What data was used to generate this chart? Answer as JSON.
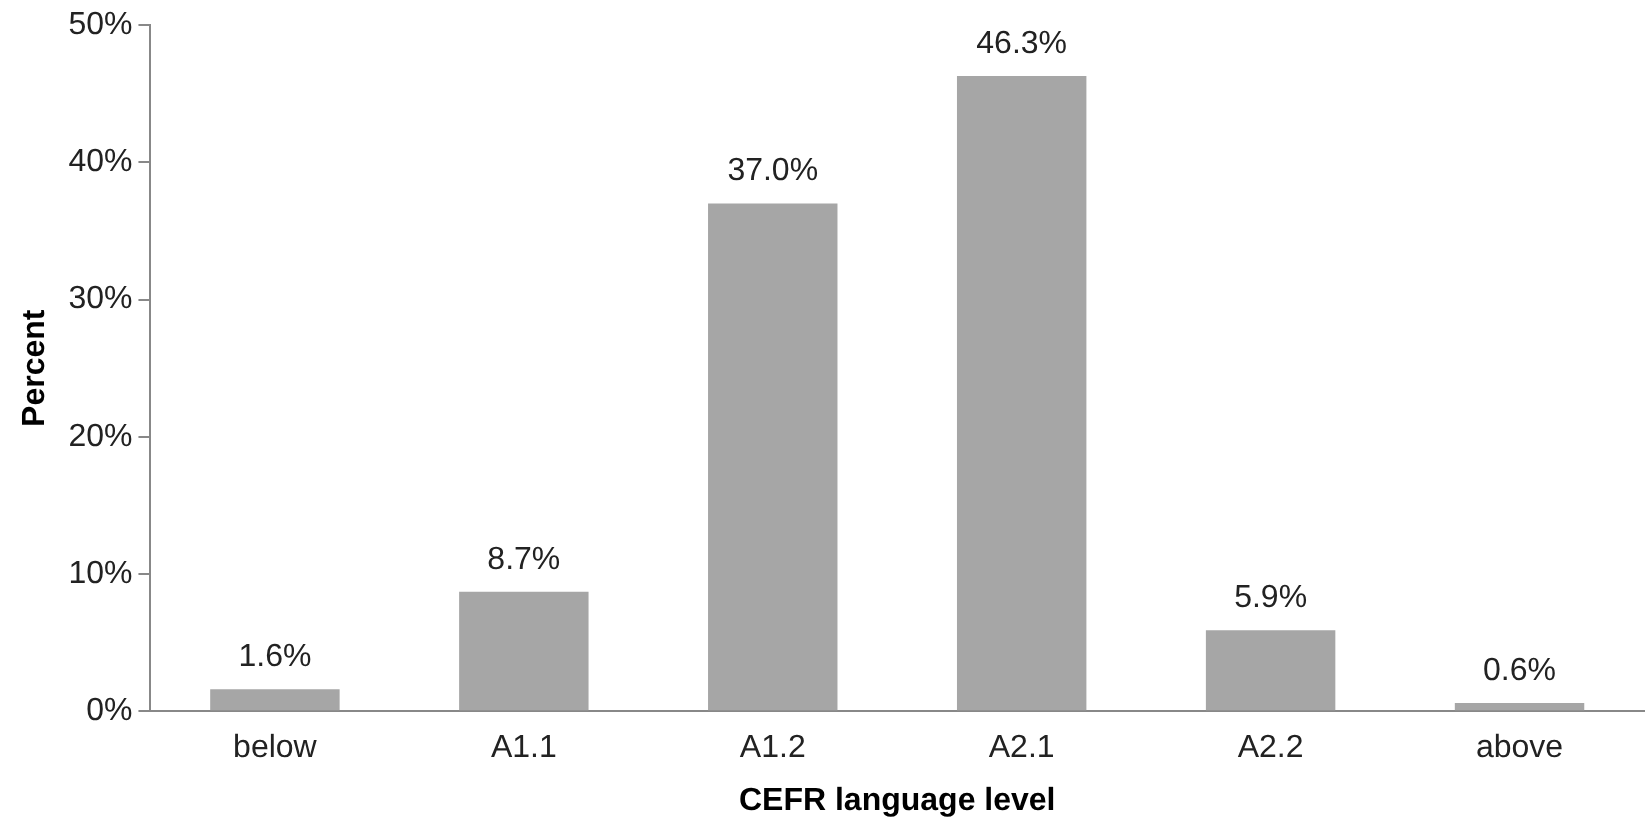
{
  "chart_data": {
    "type": "bar",
    "xlabel": "CEFR language level",
    "ylabel": "Percent",
    "categories": [
      "below",
      "A1.1",
      "A1.2",
      "A2.1",
      "A2.2",
      "above"
    ],
    "values": [
      1.6,
      8.7,
      37.0,
      46.3,
      5.9,
      0.6
    ],
    "value_labels": [
      "1.6%",
      "8.7%",
      "37.0%",
      "46.3%",
      "5.9%",
      "0.6%"
    ],
    "color": "#a6a6a6",
    "ylim": [
      0,
      50
    ],
    "yticks": [
      {
        "value": 0,
        "label": "0%"
      },
      {
        "value": 10,
        "label": "10%"
      },
      {
        "value": 20,
        "label": "20%"
      },
      {
        "value": 30,
        "label": "30%"
      },
      {
        "value": 40,
        "label": "40%"
      },
      {
        "value": 50,
        "label": "50%"
      }
    ],
    "grid": false,
    "legend": false
  }
}
